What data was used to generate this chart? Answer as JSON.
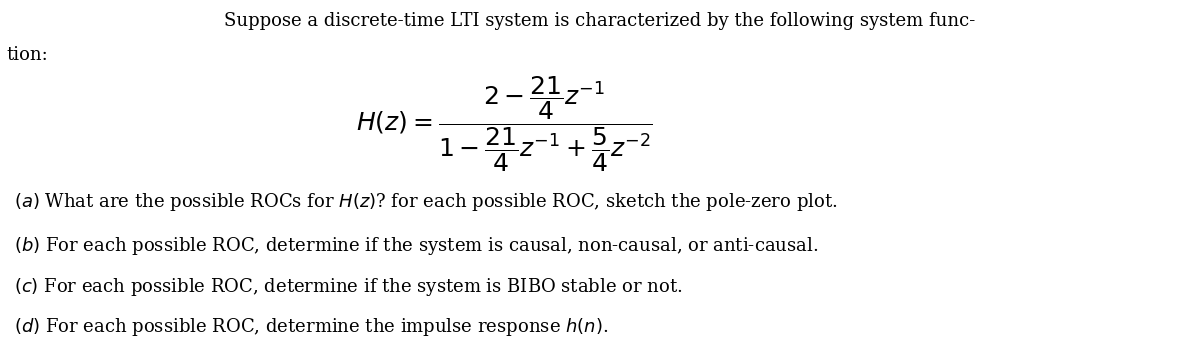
{
  "background_color": "#ffffff",
  "figsize": [
    12.0,
    3.43
  ],
  "dpi": 100,
  "title_line1": "Suppose a discrete-time LTI system is characterized by the following system func-",
  "title_line2": "tion:",
  "formula": "H(z) = \\dfrac{2 - \\dfrac{21}{4}z^{-1}}{1 - \\dfrac{21}{4}z^{-1} + \\dfrac{5}{4}z^{-2}}",
  "items": [
    "(a)\\; \\text{What are the possible ROCs for }H(z)\\text{? for each possible ROC, sketch the pole-zero plot.}",
    "(b)\\; \\text{For each possible ROC, determine if the system is causal, non-causal, or anti-causal.}",
    "(c)\\; \\text{For each possible ROC, determine if the system is BIBO stable or not.}",
    "(d)\\; \\text{For each possible ROC, determine the impulse response }h(n)\\text{.}"
  ],
  "font_size_main": 13,
  "font_size_formula": 14,
  "font_size_items": 13,
  "text_color": "#000000"
}
